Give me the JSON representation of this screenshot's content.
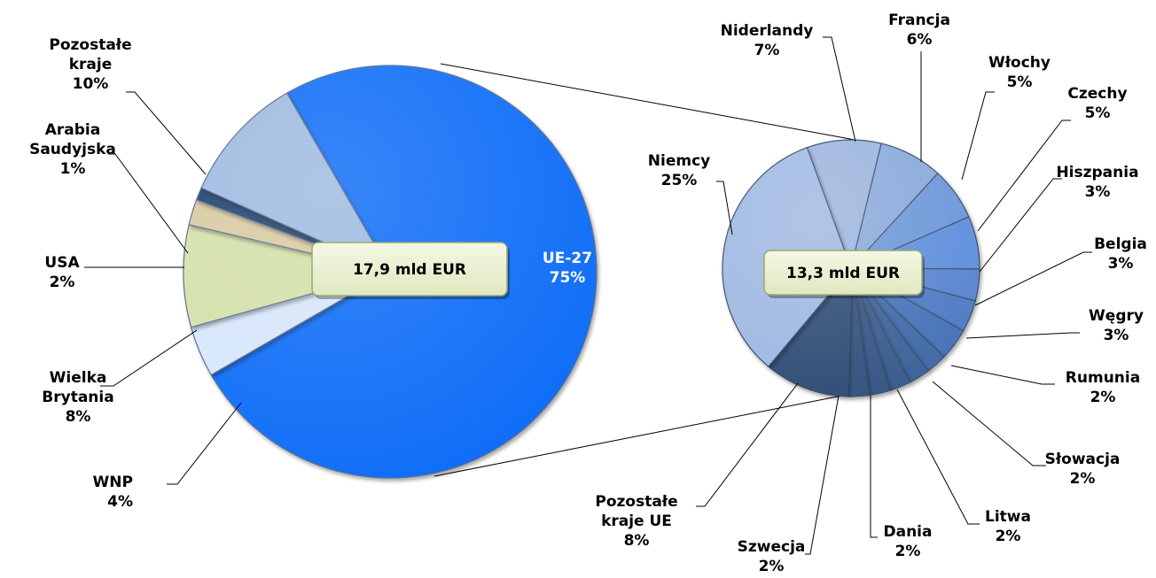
{
  "chart_data": [
    {
      "type": "pie",
      "center_label": "17,9 mld EUR",
      "slices": [
        {
          "name": "UE-27",
          "value": 75,
          "label": "UE-27",
          "pct": "75%",
          "color": "#0a6cf7"
        },
        {
          "name": "WNP",
          "value": 4,
          "label": "WNP",
          "pct": "4%",
          "color": "#d7e6fb"
        },
        {
          "name": "Wielka Brytania",
          "value": 8,
          "label": "Wielka\nBrytania",
          "pct": "8%",
          "color": "#d3e0a8"
        },
        {
          "name": "USA",
          "value": 2,
          "label": "USA",
          "pct": "2%",
          "color": "#d8c9a1"
        },
        {
          "name": "Arabia Saudyjska",
          "value": 1,
          "label": "Arabia\nSaudyjska",
          "pct": "1%",
          "color": "#1f3f6e"
        },
        {
          "name": "Pozostałe kraje",
          "value": 10,
          "label": "Pozostałe\nkraje",
          "pct": "10%",
          "color": "#9db9e0"
        }
      ]
    },
    {
      "type": "pie",
      "center_label": "13,3 mld EUR",
      "slices": [
        {
          "name": "Niderlandy",
          "value": 7,
          "label": "Niderlandy",
          "pct": "7%",
          "color": "#9cb4dd"
        },
        {
          "name": "Francja",
          "value": 6,
          "label": "Francja",
          "pct": "6%",
          "color": "#8aa9da"
        },
        {
          "name": "Włochy",
          "value": 5,
          "label": "Włochy",
          "pct": "5%",
          "color": "#6d97d8"
        },
        {
          "name": "Czechy",
          "value": 5,
          "label": "Czechy",
          "pct": "5%",
          "color": "#5f8fdb"
        },
        {
          "name": "Hiszpania",
          "value": 3,
          "label": "Hiszpania",
          "pct": "3%",
          "color": "#5a86cf"
        },
        {
          "name": "Belgia",
          "value": 3,
          "label": "Belgia",
          "pct": "3%",
          "color": "#4f7cc4"
        },
        {
          "name": "Węgry",
          "value": 3,
          "label": "Węgry",
          "pct": "3%",
          "color": "#4673b8"
        },
        {
          "name": "Rumunia",
          "value": 2,
          "label": "Rumunia",
          "pct": "2%",
          "color": "#416ba8"
        },
        {
          "name": "Słowacja",
          "value": 2,
          "label": "Słowacja",
          "pct": "2%",
          "color": "#3c6399"
        },
        {
          "name": "Litwa",
          "value": 2,
          "label": "Litwa",
          "pct": "2%",
          "color": "#385c8d"
        },
        {
          "name": "Dania",
          "value": 2,
          "label": "Dania",
          "pct": "2%",
          "color": "#345685"
        },
        {
          "name": "Szwecja",
          "value": 2,
          "label": "Szwecja",
          "pct": "2%",
          "color": "#31527e"
        },
        {
          "name": "Pozostałe kraje UE",
          "value": 8,
          "label": "Pozostałe\nkraje UE",
          "pct": "8%",
          "color": "#2e4d75"
        },
        {
          "name": "Niemcy",
          "value": 25,
          "label": "Niemcy",
          "pct": "25%",
          "color": "#9fb8e2"
        }
      ]
    }
  ]
}
